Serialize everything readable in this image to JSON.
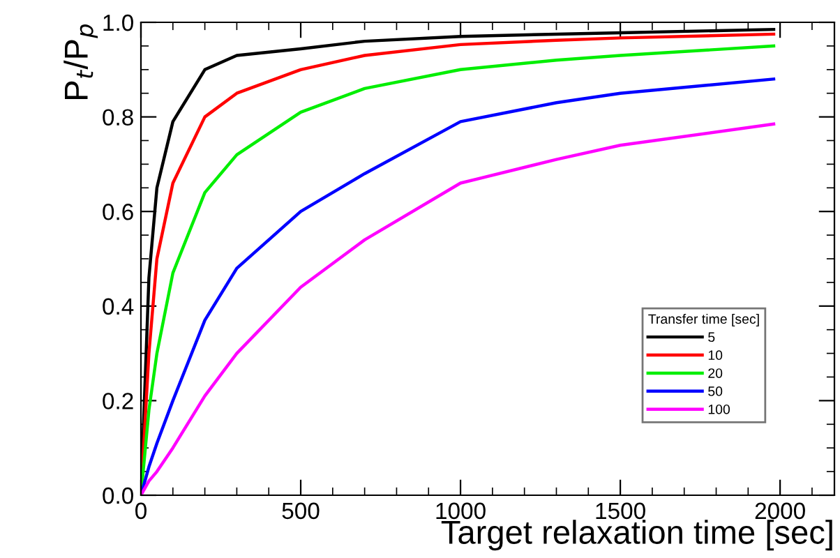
{
  "chart_data": {
    "type": "line",
    "xlabel": "Target relaxation time [sec]",
    "ylabel": "P$_{t}$/P$_{p}$",
    "legend_title": "Transfer time [sec]",
    "x": [
      0,
      25,
      50,
      100,
      200,
      300,
      500,
      700,
      1000,
      1300,
      1500,
      1980
    ],
    "series": [
      {
        "name": "5",
        "color": "#000000",
        "values": [
          0,
          0.46,
          0.65,
          0.79,
          0.9,
          0.93,
          0.944,
          0.96,
          0.97,
          0.975,
          0.978,
          0.985
        ]
      },
      {
        "name": "10",
        "color": "#ff0000",
        "values": [
          0,
          0.3,
          0.5,
          0.66,
          0.8,
          0.85,
          0.9,
          0.93,
          0.953,
          0.962,
          0.967,
          0.975
        ]
      },
      {
        "name": "20",
        "color": "#00ee00",
        "values": [
          0,
          0.18,
          0.3,
          0.47,
          0.64,
          0.72,
          0.81,
          0.86,
          0.9,
          0.92,
          0.93,
          0.95
        ]
      },
      {
        "name": "50",
        "color": "#0000ff",
        "values": [
          0,
          0.06,
          0.11,
          0.2,
          0.37,
          0.48,
          0.6,
          0.68,
          0.79,
          0.83,
          0.85,
          0.88
        ]
      },
      {
        "name": "100",
        "color": "#ff00ff",
        "values": [
          0,
          0.03,
          0.05,
          0.1,
          0.21,
          0.3,
          0.44,
          0.54,
          0.66,
          0.71,
          0.74,
          0.785
        ]
      }
    ],
    "xlim": [
      0,
      2170
    ],
    "ylim": [
      0,
      1.0
    ],
    "xticks": [
      0,
      500,
      1000,
      1500,
      2000
    ],
    "yticks": [
      {
        "value": 0,
        "label": "0.0"
      },
      0.2,
      0.4,
      0.6,
      0.8,
      {
        "value": 1.0,
        "label": "1.0"
      }
    ],
    "grid": false,
    "legend": "lower right",
    "line_style": "solid",
    "marker": "none"
  }
}
